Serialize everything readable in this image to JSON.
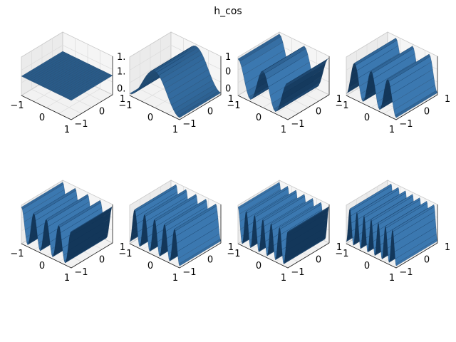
{
  "title": "h_cos",
  "colors": {
    "surface": "#3b78b0",
    "surface_dark": "#0f3050",
    "pane": "#f2f2f2",
    "pane_edge": "#c8c8c8",
    "grid": "#dcdcdc"
  },
  "chart_data": {
    "type": "surface3d",
    "layout": "2 rows x 4 columns",
    "x_ticks": [
      "−1",
      "0",
      "1"
    ],
    "y_ticks": [
      "1",
      "0",
      "−1"
    ],
    "xlim": [
      -1,
      1
    ],
    "ylim": [
      -1,
      1
    ],
    "function": "cos",
    "subplots": [
      {
        "harmonic": 0,
        "z_ticks": [
          "1.",
          "1.",
          "0."
        ]
      },
      {
        "harmonic": 1,
        "z_ticks": [
          "1",
          "0",
          "0"
        ]
      },
      {
        "harmonic": 2,
        "z_ticks": []
      },
      {
        "harmonic": 3,
        "z_ticks": []
      },
      {
        "harmonic": 4,
        "z_ticks": []
      },
      {
        "harmonic": 5,
        "z_ticks": []
      },
      {
        "harmonic": 6,
        "z_ticks": []
      },
      {
        "harmonic": 7,
        "z_ticks": []
      }
    ]
  }
}
